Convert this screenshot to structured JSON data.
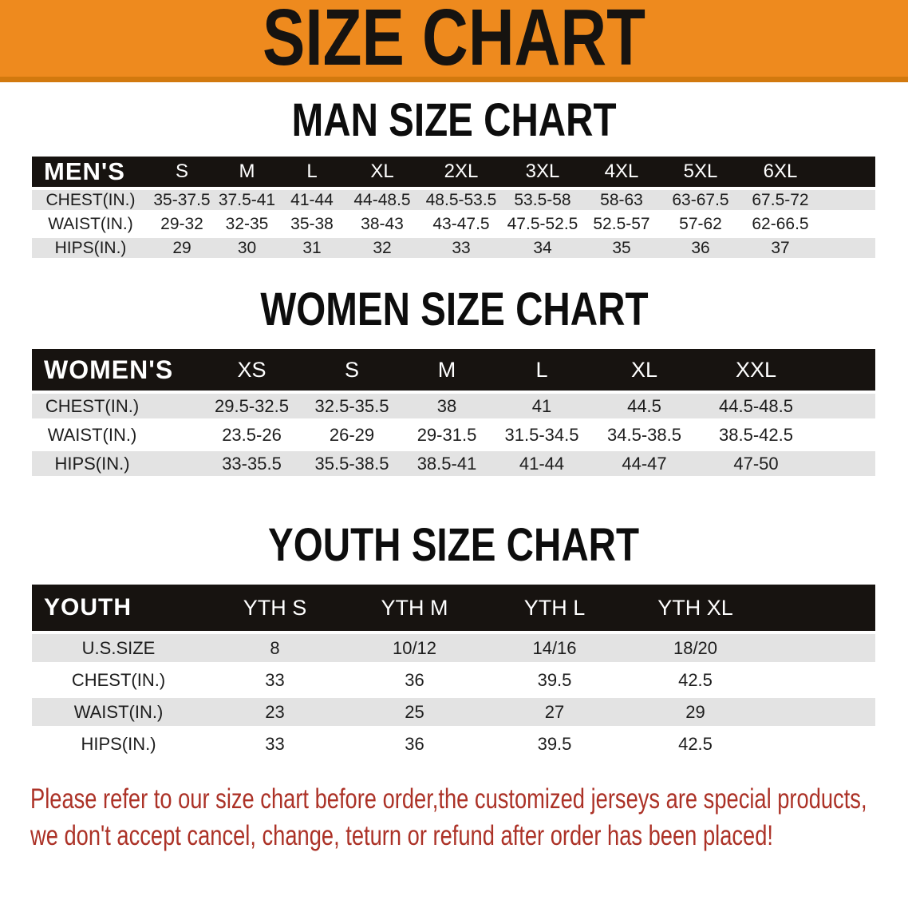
{
  "colors": {
    "banner_bg": "#EE8A1E",
    "banner_edge": "#D2790E",
    "table_header_bg": "#171310",
    "row_alt_bg": "#E3E3E3",
    "cell_text": "#1D1D1D",
    "heading_color": "#0D0D0D",
    "disclaimer_color": "#AC3227"
  },
  "banner": {
    "title": "SIZE CHART"
  },
  "sections": [
    {
      "heading": "MAN SIZE CHART",
      "table": {
        "corner": "MEN'S",
        "sizes": [
          "S",
          "M",
          "L",
          "XL",
          "2XL",
          "3XL",
          "4XL",
          "5XL",
          "6XL"
        ],
        "rows": [
          {
            "label": "CHEST(IN.)",
            "values": [
              "35-37.5",
              "37.5-41",
              "41-44",
              "44-48.5",
              "48.5-53.5",
              "53.5-58",
              "58-63",
              "63-67.5",
              "67.5-72"
            ]
          },
          {
            "label": "WAIST(IN.)",
            "values": [
              "29-32",
              "32-35",
              "35-38",
              "38-43",
              "43-47.5",
              "47.5-52.5",
              "52.5-57",
              "57-62",
              "62-66.5"
            ]
          },
          {
            "label": "HIPS(IN.)",
            "values": [
              "29",
              "30",
              "31",
              "32",
              "33",
              "34",
              "35",
              "36",
              "37"
            ]
          }
        ]
      }
    },
    {
      "heading": "WOMEN SIZE CHART",
      "table": {
        "corner": "WOMEN'S",
        "sizes": [
          "XS",
          "S",
          "M",
          "L",
          "XL",
          "XXL"
        ],
        "rows": [
          {
            "label": "CHEST(IN.)",
            "values": [
              "29.5-32.5",
              "32.5-35.5",
              "38",
              "41",
              "44.5",
              "44.5-48.5"
            ]
          },
          {
            "label": "WAIST(IN.)",
            "values": [
              "23.5-26",
              "26-29",
              "29-31.5",
              "31.5-34.5",
              "34.5-38.5",
              "38.5-42.5"
            ]
          },
          {
            "label": "HIPS(IN.)",
            "values": [
              "33-35.5",
              "35.5-38.5",
              "38.5-41",
              "41-44",
              "44-47",
              "47-50"
            ]
          }
        ]
      }
    },
    {
      "heading": "YOUTH SIZE CHART",
      "table": {
        "corner": "YOUTH",
        "sizes": [
          "YTH S",
          "YTH M",
          "YTH L",
          "YTH XL"
        ],
        "rows": [
          {
            "label": "U.S.SIZE",
            "values": [
              "8",
              "10/12",
              "14/16",
              "18/20"
            ]
          },
          {
            "label": "CHEST(IN.)",
            "values": [
              "33",
              "36",
              "39.5",
              "42.5"
            ]
          },
          {
            "label": "WAIST(IN.)",
            "values": [
              "23",
              "25",
              "27",
              "29"
            ]
          },
          {
            "label": "HIPS(IN.)",
            "values": [
              "33",
              "36",
              "39.5",
              "42.5"
            ]
          }
        ]
      }
    }
  ],
  "disclaimer": {
    "lines": [
      "Please refer to our size chart before order,the customized jerseys are special products,",
      "we don't accept cancel, change, teturn or refund after order has been placed!"
    ]
  }
}
